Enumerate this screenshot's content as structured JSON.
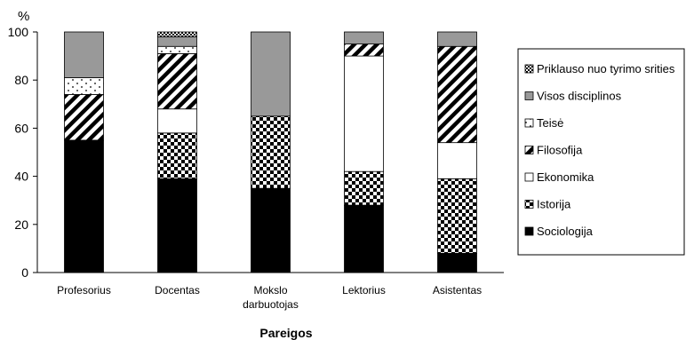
{
  "chart_data": {
    "type": "bar",
    "stacked": true,
    "unit_label": "%",
    "xlabel": "Pareigos",
    "ylabel": "",
    "ylim": [
      0,
      100
    ],
    "yticks": [
      0,
      20,
      40,
      60,
      80,
      100
    ],
    "grid": false,
    "legend_position": "right",
    "categories": [
      [
        "Profesorius"
      ],
      [
        "Docentas"
      ],
      [
        "Mokslo",
        "darbuotojas"
      ],
      [
        "Lektorius"
      ],
      [
        "Asistentas"
      ]
    ],
    "series": [
      {
        "name": "Sociologija",
        "pattern": "solid-black",
        "values": [
          55,
          39,
          35,
          28,
          8
        ]
      },
      {
        "name": "Istorija",
        "pattern": "checker",
        "values": [
          0,
          19,
          30,
          14,
          31
        ]
      },
      {
        "name": "Ekonomika",
        "pattern": "white",
        "values": [
          0,
          10,
          0,
          48,
          15
        ]
      },
      {
        "name": "Filosofija",
        "pattern": "diagonal",
        "values": [
          19,
          23,
          0,
          5,
          40
        ]
      },
      {
        "name": "Teisė",
        "pattern": "dots",
        "values": [
          7,
          3,
          0,
          0,
          0
        ]
      },
      {
        "name": "Visos disciplinos",
        "pattern": "gray",
        "values": [
          19,
          4,
          35,
          5,
          6
        ]
      },
      {
        "name": "Priklauso nuo tyrimo srities",
        "pattern": "crosshatch",
        "values": [
          0,
          2,
          0,
          0,
          0
        ]
      }
    ]
  }
}
